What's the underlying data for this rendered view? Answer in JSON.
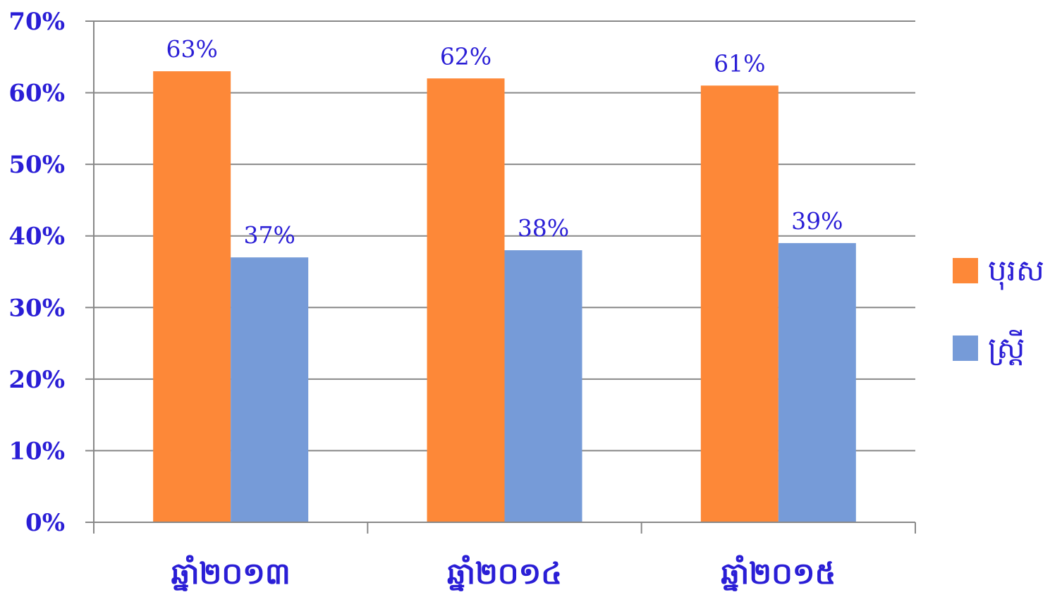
{
  "chart_data": {
    "type": "bar",
    "categories": [
      "ឆ្នាំ២០១៣",
      "ឆ្នាំ២០១៤",
      "ឆ្នាំ២០១៥"
    ],
    "series": [
      {
        "name": "បុរស",
        "values": [
          63,
          62,
          61
        ],
        "color": "#fd8838",
        "labels": [
          "63%",
          "62%",
          "61%"
        ]
      },
      {
        "name": "ស្ត្រី",
        "values": [
          37,
          38,
          39
        ],
        "color": "#769bd8",
        "labels": [
          "37%",
          "38%",
          "39%"
        ]
      }
    ],
    "ylim": [
      0,
      70
    ],
    "yticks": [
      "0%",
      "10%",
      "20%",
      "30%",
      "40%",
      "50%",
      "60%",
      "70%"
    ],
    "grid": true,
    "legend_position": "right",
    "text_color": "#2a1ed6",
    "grid_color": "#888888"
  }
}
